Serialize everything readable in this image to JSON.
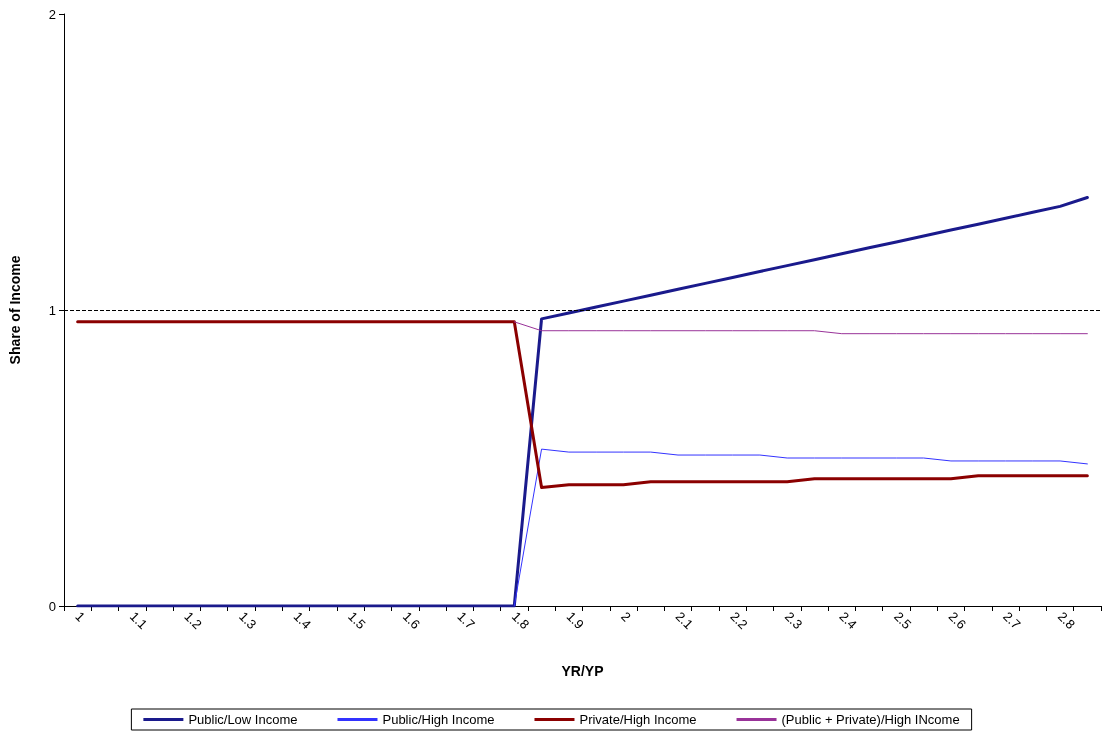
{
  "chart_data": {
    "type": "line",
    "xlabel": "YR/YP",
    "ylabel": "Share of Income",
    "categories": [
      "1",
      null,
      "1.1",
      null,
      "1.2",
      null,
      "1.3",
      null,
      "1.4",
      null,
      "1.5",
      null,
      "1.6",
      null,
      "1.7",
      null,
      "1.8",
      null,
      "1.9",
      null,
      "2",
      null,
      "2.1",
      null,
      "2.2",
      null,
      "2.3",
      null,
      "2.4",
      null,
      "2.5",
      null,
      "2.6",
      null,
      "2.7",
      null,
      "2.8",
      null
    ],
    "series": [
      {
        "name": "Public/Low Income",
        "color": "#1a1a8c",
        "values": [
          0,
          0,
          0,
          0,
          0,
          0,
          0,
          0,
          0,
          0,
          0,
          0,
          0,
          0,
          0,
          0,
          0,
          0.97,
          0.99,
          1.01,
          1.03,
          1.05,
          1.07,
          1.09,
          1.11,
          1.13,
          1.15,
          1.17,
          1.19,
          1.21,
          1.23,
          1.25,
          1.27,
          1.29,
          1.31,
          1.33,
          1.35,
          1.38
        ]
      },
      {
        "name": "Public/High Income",
        "color": "#3333ff",
        "values": [
          null,
          null,
          null,
          null,
          null,
          null,
          null,
          null,
          null,
          null,
          null,
          null,
          null,
          null,
          null,
          null,
          0,
          0.53,
          0.52,
          0.52,
          0.52,
          0.52,
          0.51,
          0.51,
          0.51,
          0.51,
          0.5,
          0.5,
          0.5,
          0.5,
          0.5,
          0.5,
          0.49,
          0.49,
          0.49,
          0.49,
          0.49,
          0.48
        ]
      },
      {
        "name": "Private/High Income",
        "color": "#8b0000",
        "values": [
          0.96,
          0.96,
          0.96,
          0.96,
          0.96,
          0.96,
          0.96,
          0.96,
          0.96,
          0.96,
          0.96,
          0.96,
          0.96,
          0.96,
          0.96,
          0.96,
          0.96,
          0.4,
          0.41,
          0.41,
          0.41,
          0.42,
          0.42,
          0.42,
          0.42,
          0.42,
          0.42,
          0.43,
          0.43,
          0.43,
          0.43,
          0.43,
          0.43,
          0.44,
          0.44,
          0.44,
          0.44,
          0.44
        ]
      },
      {
        "name": "(Public + Private)/High INcome",
        "color": "#993399",
        "values": [
          null,
          null,
          null,
          null,
          null,
          null,
          null,
          null,
          null,
          null,
          null,
          null,
          null,
          null,
          null,
          null,
          0.96,
          0.93,
          0.93,
          0.93,
          0.93,
          0.93,
          0.93,
          0.93,
          0.93,
          0.93,
          0.93,
          0.93,
          0.92,
          0.92,
          0.92,
          0.92,
          0.92,
          0.92,
          0.92,
          0.92,
          0.92,
          0.92
        ]
      }
    ],
    "ylim": [
      0,
      2
    ],
    "yticks": [
      0,
      1,
      2
    ],
    "grid": false,
    "legend": "bottom",
    "marker": "none",
    "line_style": "solid",
    "ref_lines": [
      {
        "axis": "y",
        "value": 1,
        "line_style": "dashed",
        "color": "#000000"
      }
    ]
  }
}
